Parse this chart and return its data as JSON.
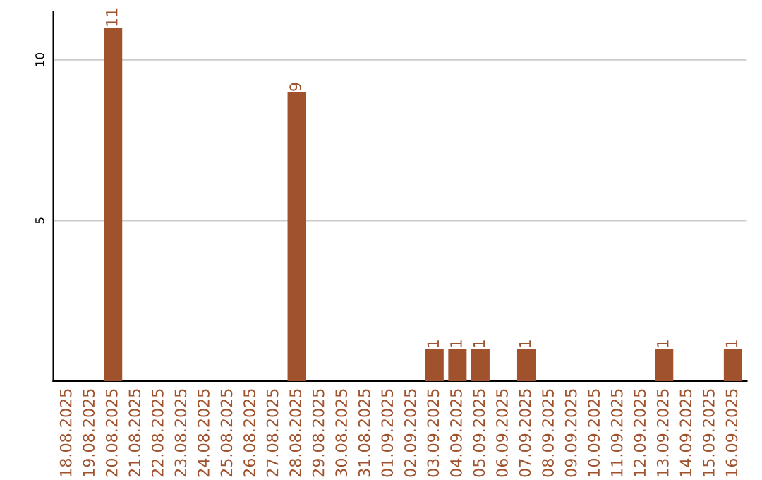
{
  "chart_data": {
    "type": "bar",
    "categories": [
      "18.08.2025",
      "19.08.2025",
      "20.08.2025",
      "21.08.2025",
      "22.08.2025",
      "23.08.2025",
      "24.08.2025",
      "25.08.2025",
      "26.08.2025",
      "27.08.2025",
      "28.08.2025",
      "29.08.2025",
      "30.08.2025",
      "31.08.2025",
      "01.09.2025",
      "02.09.2025",
      "03.09.2025",
      "04.09.2025",
      "05.09.2025",
      "06.09.2025",
      "07.09.2025",
      "08.09.2025",
      "09.09.2025",
      "10.09.2025",
      "11.09.2025",
      "12.09.2025",
      "13.09.2025",
      "14.09.2025",
      "15.09.2025",
      "16.09.2025"
    ],
    "values": [
      null,
      null,
      11,
      null,
      null,
      null,
      null,
      null,
      null,
      null,
      9,
      null,
      null,
      null,
      null,
      null,
      1,
      1,
      1,
      null,
      1,
      null,
      null,
      null,
      null,
      null,
      1,
      null,
      null,
      1
    ],
    "color": "#a0522d",
    "ylim": [
      0,
      11.5
    ],
    "yticks": [
      5,
      10
    ],
    "grid": "y",
    "data_labels": true
  }
}
